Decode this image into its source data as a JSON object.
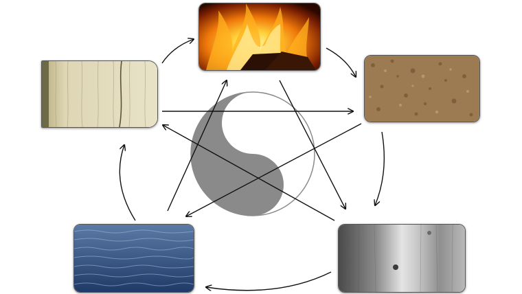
{
  "diagram": {
    "elements": [
      {
        "id": "fire",
        "icon": "fire-texture"
      },
      {
        "id": "earth",
        "icon": "soil-texture"
      },
      {
        "id": "metal",
        "icon": "brushed-metal-texture"
      },
      {
        "id": "water",
        "icon": "water-ripple-texture"
      },
      {
        "id": "wood",
        "icon": "wood-grain-texture"
      }
    ],
    "generating_cycle": [
      [
        "fire",
        "earth"
      ],
      [
        "earth",
        "metal"
      ],
      [
        "metal",
        "water"
      ],
      [
        "water",
        "wood"
      ],
      [
        "wood",
        "fire"
      ]
    ],
    "overcoming_cycle": [
      [
        "wood",
        "earth"
      ],
      [
        "earth",
        "water"
      ],
      [
        "water",
        "fire"
      ],
      [
        "fire",
        "metal"
      ],
      [
        "metal",
        "wood"
      ]
    ],
    "center_icon": "yin-yang-icon",
    "colors": {
      "yin": "#8a8a8a",
      "yang": "#ffffff",
      "arrow": "#111111"
    }
  }
}
